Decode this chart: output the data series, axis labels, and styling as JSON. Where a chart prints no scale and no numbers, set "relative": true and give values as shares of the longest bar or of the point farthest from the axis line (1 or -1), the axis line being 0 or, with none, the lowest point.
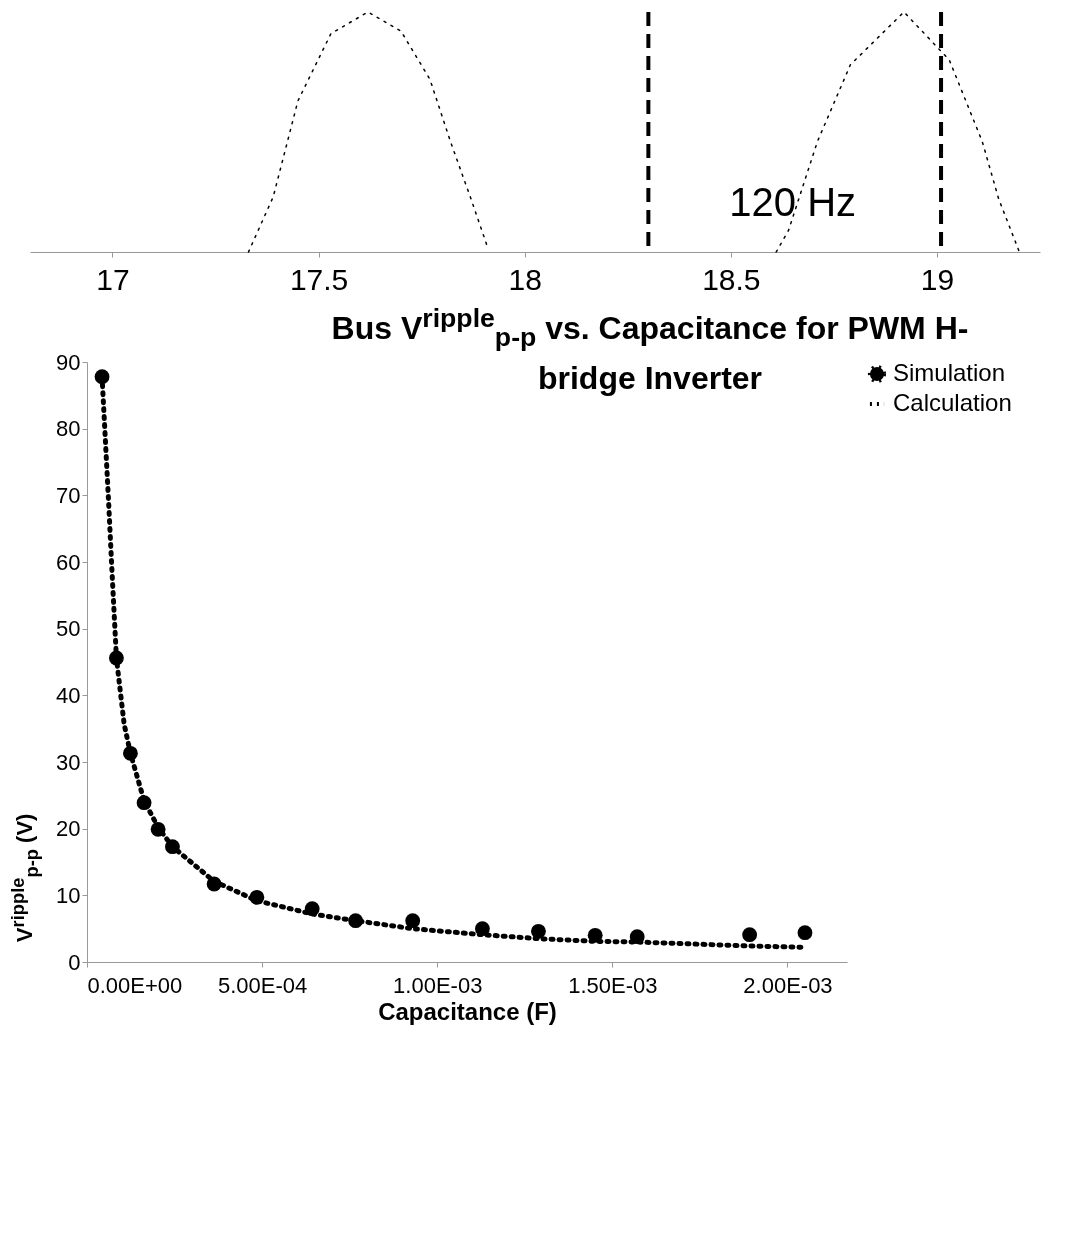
{
  "chart_data": [
    {
      "type": "line",
      "relative": true,
      "xlim": [
        16.8,
        19.25
      ],
      "xticks": [
        17,
        17.5,
        18,
        18.5,
        19
      ],
      "tick_labels": "x",
      "grid": false,
      "legend": false,
      "series": [
        {
          "color": "#000000",
          "line_style": "dotted",
          "x": [
            17.33,
            17.39,
            17.45,
            17.53,
            17.62,
            17.7,
            17.77,
            17.82,
            17.87,
            17.91
          ],
          "values": [
            0,
            0.23,
            0.63,
            0.91,
            1,
            0.92,
            0.72,
            0.46,
            0.22,
            0.02
          ]
        },
        {
          "color": "#000000",
          "line_style": "dotted",
          "x": [
            18.61,
            18.64,
            18.71,
            18.79,
            18.92,
            19.03,
            19.11,
            19.15,
            19.2
          ],
          "values": [
            0,
            0.09,
            0.46,
            0.78,
            1,
            0.8,
            0.46,
            0.22,
            0
          ]
        }
      ],
      "ref_lines": [
        {
          "axis": "x",
          "value": 18.3,
          "line_style": "dashed",
          "color": "#000000"
        },
        {
          "axis": "x",
          "value": 19.01,
          "line_style": "dashed",
          "color": "#000000"
        }
      ],
      "annotations": [
        {
          "text": "120 Hz",
          "x": 18.65,
          "y": 0.2
        }
      ]
    },
    {
      "type": "scatter",
      "title": "Bus V$^{ripple}$$_{p-p}$ vs. Capacitance for PWM H-bridge Inverter",
      "xlabel": "Capacitance (F)",
      "ylabel": "V$^{ripple}$$_{p-p}$ (V)",
      "xlim": [
        0,
        0.00217
      ],
      "xticks": [
        {
          "value": 0,
          "label": "0.00E+00"
        },
        {
          "value": 0.0005,
          "label": "5.00E-04"
        },
        {
          "value": 0.001,
          "label": "1.00E-03"
        },
        {
          "value": 0.0015,
          "label": "1.50E-03"
        },
        {
          "value": 0.002,
          "label": "2.00E-03"
        }
      ],
      "ylim": [
        0,
        90
      ],
      "yticks": [
        0,
        10,
        20,
        30,
        40,
        50,
        60,
        70,
        80,
        90
      ],
      "grid": false,
      "legend": "right",
      "series": [
        {
          "name": "Simulation",
          "type": "scatter",
          "marker": "circle",
          "color": "#000000",
          "x": [
            4.3e-05,
            8.4e-05,
            0.000124,
            0.000163,
            0.000203,
            0.000244,
            0.000363,
            0.000485,
            0.000643,
            0.000767,
            0.00093,
            0.001129,
            0.001289,
            0.001451,
            0.001571,
            0.001892,
            0.00205
          ],
          "values": [
            87.8,
            45.6,
            31.3,
            23.9,
            19.9,
            17.3,
            11.7,
            9.7,
            8.0,
            6.2,
            6.2,
            5.0,
            4.6,
            4.0,
            3.8,
            4.1,
            4.4
          ]
        },
        {
          "name": "Calculation",
          "type": "line",
          "line_style": "dotted",
          "color": "#000000",
          "x": [
            4.3e-05,
            6.1e-05,
            7.2e-05,
            8.4e-05,
            0.000106,
            0.000124,
            0.000163,
            0.000203,
            0.000244,
            0.000363,
            0.000485,
            0.000643,
            0.000767,
            0.00093,
            0.001129,
            0.001289,
            0.001451,
            0.001571,
            0.001892,
            0.00205
          ],
          "values": [
            87.8,
            69.7,
            57.9,
            45.6,
            35.7,
            31.3,
            24.2,
            20.2,
            17.3,
            12.1,
            9.2,
            7.2,
            6.2,
            5.0,
            4.1,
            3.5,
            3.1,
            3.0,
            2.4,
            2.2
          ]
        }
      ]
    }
  ]
}
